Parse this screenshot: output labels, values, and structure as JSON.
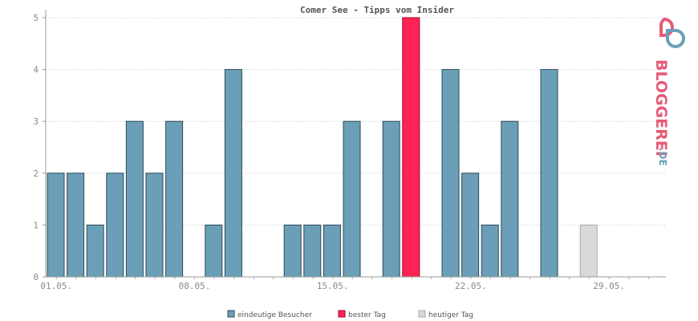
{
  "chart_data": {
    "type": "bar",
    "title": "Comer See - Tipps vom Insider",
    "categories": [
      "01.05.",
      "02.05.",
      "03.05.",
      "04.05.",
      "05.05.",
      "06.05.",
      "07.05.",
      "08.05.",
      "09.05.",
      "10.05.",
      "11.05.",
      "12.05.",
      "13.05.",
      "14.05.",
      "15.05.",
      "16.05.",
      "17.05.",
      "18.05.",
      "19.05.",
      "20.05.",
      "21.05.",
      "22.05.",
      "23.05.",
      "24.05.",
      "25.05.",
      "26.05.",
      "27.05.",
      "28.05.",
      "29.05.",
      "30.05.",
      "31.05."
    ],
    "values": [
      2,
      2,
      1,
      2,
      3,
      2,
      3,
      0,
      1,
      4,
      0,
      0,
      1,
      1,
      1,
      3,
      0,
      3,
      5,
      0,
      4,
      2,
      1,
      3,
      0,
      4,
      0,
      1,
      0,
      0,
      0
    ],
    "best_day_index": 18,
    "today_index": 27,
    "xtick_labels": [
      {
        "index": 1,
        "label": "01.05."
      },
      {
        "index": 8,
        "label": "08.05."
      },
      {
        "index": 15,
        "label": "15.05."
      },
      {
        "index": 22,
        "label": "22.05."
      },
      {
        "index": 29,
        "label": "29.05."
      }
    ],
    "yticks": [
      "0",
      "1",
      "2",
      "3",
      "4",
      "5"
    ],
    "ylim": [
      0,
      5
    ],
    "grid": true,
    "legend": {
      "placement": "bottom",
      "items": [
        {
          "label": "eindeutige Besucher",
          "color": "#6b9fb8"
        },
        {
          "label": "bester Tag",
          "color": "#ff2255"
        },
        {
          "label": "heutiger Tag",
          "color": "#d9d9d9"
        }
      ]
    },
    "colors": {
      "bar": "#6b9fb8",
      "bar_stroke": "#2b4a57",
      "best": "#ff2255",
      "best_stroke": "#a8002a",
      "today": "#d9d9d9",
      "today_stroke": "#aaaaaa"
    }
  },
  "logo": {
    "text_main": "BLOGGEREI",
    "text_suffix": ".DE"
  }
}
